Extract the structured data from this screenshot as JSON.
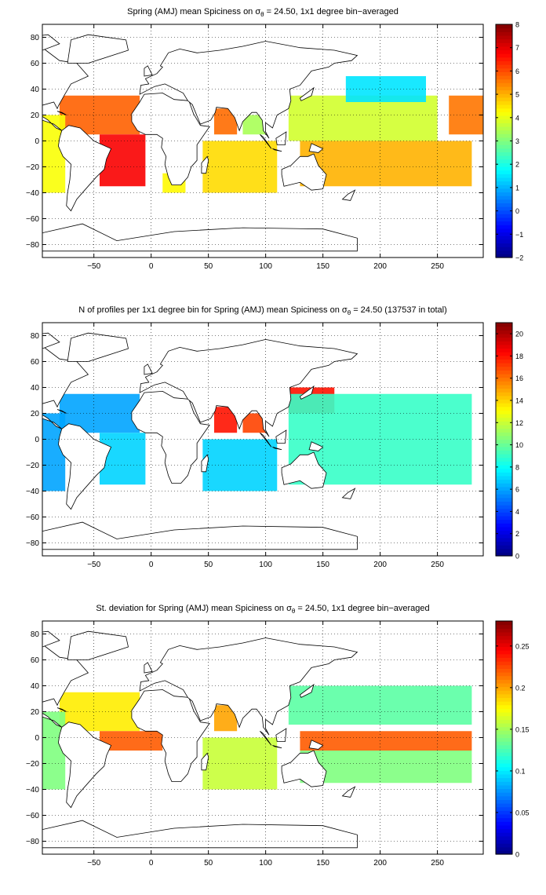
{
  "chart_data": [
    {
      "type": "heatmap",
      "title": "Spring (AMJ) mean Spiciness on σθ = 24.50, 1x1 degree bin−averaged",
      "title_parts": {
        "before": "Spring (AMJ) mean Spiciness on σ",
        "sub": "θ",
        "after": " = 24.50, 1x1 degree bin−averaged"
      },
      "xlim": [
        -95,
        290
      ],
      "ylim": [
        -90,
        90
      ],
      "xticks": [
        -50,
        0,
        50,
        100,
        150,
        200,
        250
      ],
      "yticks": [
        -80,
        -60,
        -40,
        -20,
        0,
        20,
        40,
        60,
        80
      ],
      "grid": true,
      "colorbar": {
        "min": -2,
        "max": 8,
        "ticks": [
          -2,
          -1,
          0,
          1,
          2,
          3,
          4,
          5,
          6,
          7,
          8
        ],
        "colormap": "jet"
      },
      "regions": [
        {
          "lon": [
            -80,
            -10
          ],
          "lat": [
            5,
            35
          ],
          "value": 5.8
        },
        {
          "lon": [
            -45,
            -5
          ],
          "lat": [
            -35,
            5
          ],
          "value": 6.8
        },
        {
          "lon": [
            -95,
            -75
          ],
          "lat": [
            -40,
            20
          ],
          "value": 4.2
        },
        {
          "lon": [
            10,
            30
          ],
          "lat": [
            -40,
            -25
          ],
          "value": 4.3
        },
        {
          "lon": [
            45,
            110
          ],
          "lat": [
            -40,
            0
          ],
          "value": 4.6
        },
        {
          "lon": [
            55,
            75
          ],
          "lat": [
            5,
            25
          ],
          "value": 5.7
        },
        {
          "lon": [
            80,
            100
          ],
          "lat": [
            5,
            20
          ],
          "value": 3.4
        },
        {
          "lon": [
            120,
            250
          ],
          "lat": [
            0,
            35
          ],
          "value": 3.8
        },
        {
          "lon": [
            130,
            280
          ],
          "lat": [
            -35,
            0
          ],
          "value": 5.0
        },
        {
          "lon": [
            170,
            240
          ],
          "lat": [
            30,
            50
          ],
          "value": 1.5
        },
        {
          "lon": [
            260,
            290
          ],
          "lat": [
            5,
            35
          ],
          "value": 5.6
        }
      ]
    },
    {
      "type": "heatmap",
      "title": "N of profiles per 1x1 degree bin for Spring (AMJ) mean Spiciness on σθ = 24.50 (137537 in total)",
      "title_parts": {
        "before": "N of profiles per 1x1 degree bin for Spring (AMJ) mean Spiciness on σ",
        "sub": "θ",
        "after": " = 24.50 (137537 in total)"
      },
      "xlim": [
        -95,
        290
      ],
      "ylim": [
        -90,
        90
      ],
      "xticks": [
        -50,
        0,
        50,
        100,
        150,
        200,
        250
      ],
      "yticks": [
        -80,
        -60,
        -40,
        -20,
        0,
        20,
        40,
        60,
        80
      ],
      "grid": true,
      "colorbar": {
        "min": 0,
        "max": 21,
        "ticks": [
          0,
          2,
          4,
          6,
          8,
          10,
          12,
          14,
          16,
          18,
          20
        ],
        "colormap": "jet"
      },
      "regions": [
        {
          "lon": [
            -80,
            -10
          ],
          "lat": [
            5,
            35
          ],
          "value": 6
        },
        {
          "lon": [
            -45,
            -5
          ],
          "lat": [
            -35,
            5
          ],
          "value": 7
        },
        {
          "lon": [
            -95,
            -75
          ],
          "lat": [
            -40,
            20
          ],
          "value": 6
        },
        {
          "lon": [
            45,
            110
          ],
          "lat": [
            -40,
            0
          ],
          "value": 7
        },
        {
          "lon": [
            55,
            75
          ],
          "lat": [
            5,
            25
          ],
          "value": 18
        },
        {
          "lon": [
            80,
            100
          ],
          "lat": [
            5,
            20
          ],
          "value": 17
        },
        {
          "lon": [
            120,
            160
          ],
          "lat": [
            20,
            40
          ],
          "value": 18
        },
        {
          "lon": [
            120,
            280
          ],
          "lat": [
            -35,
            35
          ],
          "value": 9
        }
      ]
    },
    {
      "type": "heatmap",
      "title": "St. deviation for Spring (AMJ) mean Spiciness on σθ = 24.50, 1x1 degree bin−averaged",
      "title_parts": {
        "before": "St. deviation for Spring (AMJ) mean Spiciness on σ",
        "sub": "θ",
        "after": " = 24.50, 1x1 degree bin−averaged"
      },
      "xlim": [
        -95,
        290
      ],
      "ylim": [
        -90,
        90
      ],
      "xticks": [
        -50,
        0,
        50,
        100,
        150,
        200,
        250
      ],
      "yticks": [
        -80,
        -60,
        -40,
        -20,
        0,
        20,
        40,
        60,
        80
      ],
      "grid": true,
      "colorbar": {
        "min": 0,
        "max": 0.28,
        "ticks": [
          0,
          0.05,
          0.1,
          0.15,
          0.2,
          0.25
        ],
        "colormap": "jet"
      },
      "regions": [
        {
          "lon": [
            -80,
            -10
          ],
          "lat": [
            5,
            35
          ],
          "value": 0.18
        },
        {
          "lon": [
            -45,
            10
          ],
          "lat": [
            -10,
            5
          ],
          "value": 0.22
        },
        {
          "lon": [
            -95,
            -75
          ],
          "lat": [
            -40,
            20
          ],
          "value": 0.14
        },
        {
          "lon": [
            45,
            110
          ],
          "lat": [
            -40,
            0
          ],
          "value": 0.16
        },
        {
          "lon": [
            55,
            75
          ],
          "lat": [
            5,
            25
          ],
          "value": 0.2
        },
        {
          "lon": [
            120,
            280
          ],
          "lat": [
            10,
            40
          ],
          "value": 0.13
        },
        {
          "lon": [
            130,
            280
          ],
          "lat": [
            -10,
            5
          ],
          "value": 0.22
        },
        {
          "lon": [
            130,
            280
          ],
          "lat": [
            -35,
            -10
          ],
          "value": 0.14
        }
      ]
    }
  ]
}
